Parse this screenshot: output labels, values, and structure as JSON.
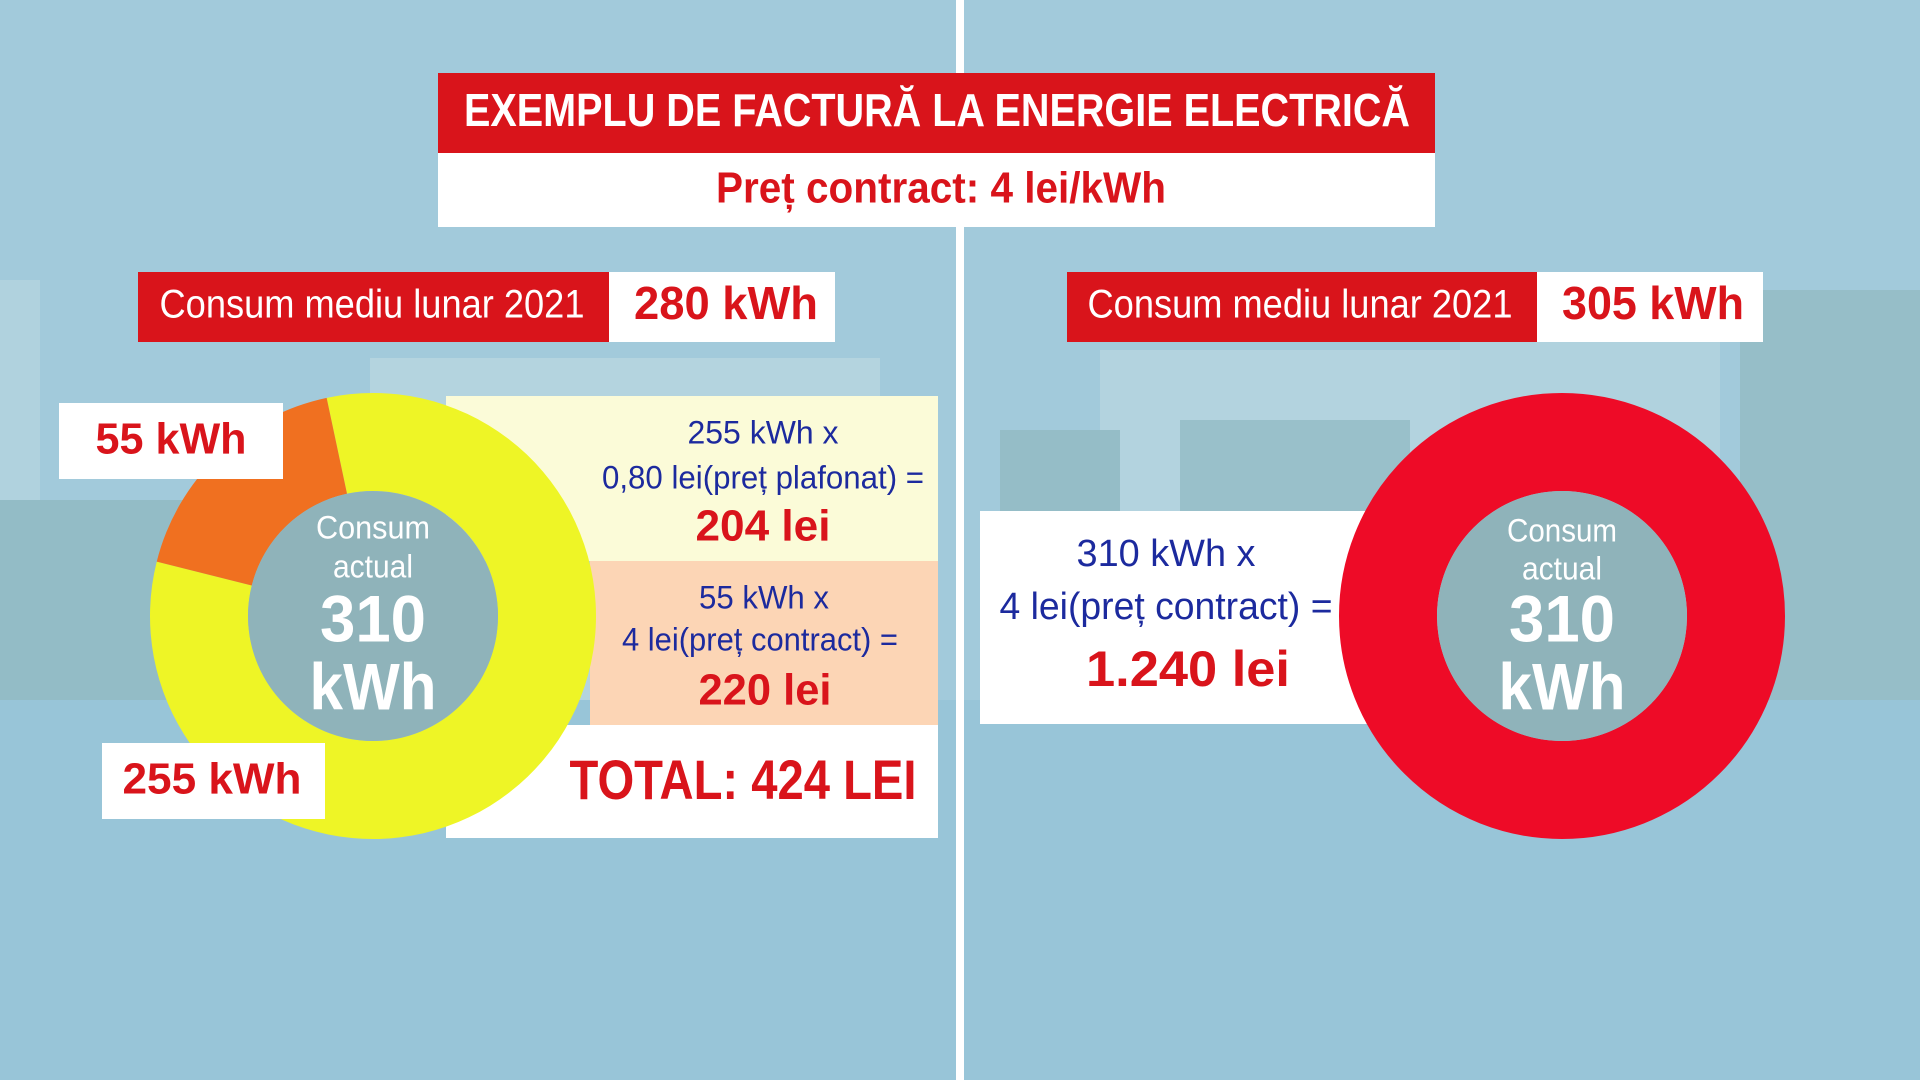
{
  "header": {
    "title": "EXEMPLU DE FACTURĂ LA ENERGIE ELECTRICĂ",
    "subtitle": "Preț contract: 4 lei/kWh"
  },
  "left": {
    "label": "Consum mediu lunar 2021",
    "value": "280 kWh",
    "calc": [
      {
        "lines": [
          "255 kWh x",
          "0,80 lei(preț plafonat) ="
        ],
        "result": "204 lei"
      },
      {
        "lines": [
          "55 kWh x",
          "4 lei(preț contract) ="
        ],
        "result": "220 lei"
      }
    ],
    "total": "TOTAL: 424 LEI"
  },
  "right": {
    "label": "Consum mediu lunar 2021",
    "value": "305 kWh",
    "calc": {
      "lines": [
        "310 kWh x",
        "4 lei(preț contract) ="
      ],
      "result": "1.240 lei"
    }
  },
  "chart_data": [
    {
      "type": "pie",
      "donut": true,
      "values": [
        255,
        55
      ],
      "value_labels": [
        "255 kWh",
        "55 kWh"
      ],
      "colors": [
        "#eef526",
        "#f07020"
      ],
      "center_label": [
        "Consum",
        "actual",
        "310",
        "kWh"
      ]
    },
    {
      "type": "pie",
      "donut": true,
      "values": [
        310
      ],
      "colors": [
        "#ee0b27"
      ],
      "center_label": [
        "Consum",
        "actual",
        "310",
        "kWh"
      ]
    }
  ]
}
